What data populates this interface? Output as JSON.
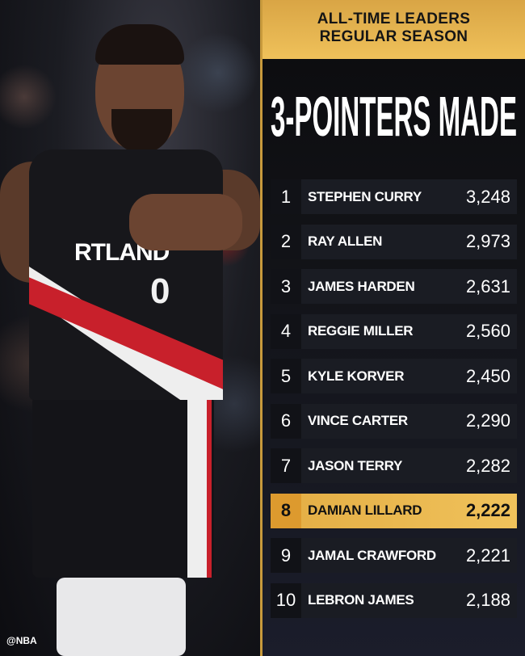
{
  "header": {
    "line1": "ALL-TIME LEADERS",
    "line2": "REGULAR SEASON"
  },
  "title": "3-POINTERS MADE",
  "photo": {
    "jersey_text": "RTLAND",
    "jersey_number": "0",
    "watermark": "@NBA"
  },
  "colors": {
    "gold": "#efc15a",
    "row": "#1a1c23",
    "highlight": "#f0c25b"
  },
  "leaders": [
    {
      "rank": "1",
      "name": "STEPHEN CURRY",
      "value": "3,248"
    },
    {
      "rank": "2",
      "name": "RAY ALLEN",
      "value": "2,973"
    },
    {
      "rank": "3",
      "name": "JAMES HARDEN",
      "value": "2,631"
    },
    {
      "rank": "4",
      "name": "REGGIE MILLER",
      "value": "2,560"
    },
    {
      "rank": "5",
      "name": "KYLE KORVER",
      "value": "2,450"
    },
    {
      "rank": "6",
      "name": "VINCE CARTER",
      "value": "2,290"
    },
    {
      "rank": "7",
      "name": "JASON TERRY",
      "value": "2,282"
    },
    {
      "rank": "8",
      "name": "DAMIAN LILLARD",
      "value": "2,222",
      "highlighted": true
    },
    {
      "rank": "9",
      "name": "JAMAL CRAWFORD",
      "value": "2,221"
    },
    {
      "rank": "10",
      "name": "LEBRON JAMES",
      "value": "2,188"
    }
  ]
}
